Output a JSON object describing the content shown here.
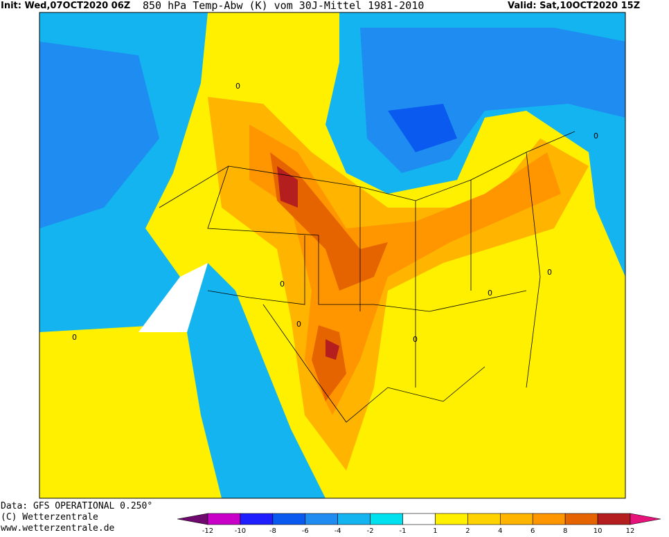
{
  "header": {
    "init": "Init: Wed,07OCT2020 06Z",
    "title": "850 hPa Temp-Abw (K) vom 30J-Mittel 1981-2010",
    "valid": "Valid: Sat,10OCT2020 15Z"
  },
  "footer": {
    "data": "Data: GFS OPERATIONAL 0.250°",
    "copyright": "(C) Wetterzentrale",
    "url": "www.wetterzentrale.de"
  },
  "map": {
    "contour_labels": [
      "0",
      "0",
      "0",
      "0",
      "0",
      "0",
      "0",
      "0"
    ]
  },
  "colorbar": {
    "ticks": [
      -12,
      -10,
      -8,
      -6,
      -4,
      -2,
      -1,
      1,
      2,
      4,
      6,
      8,
      10,
      12
    ],
    "colors": [
      "#6e0a6e",
      "#c800c8",
      "#1e1eff",
      "#0a5af0",
      "#1e8cf0",
      "#14b4f0",
      "#00e1f0",
      "#ffffff",
      "#fff000",
      "#ffd200",
      "#ffb400",
      "#ff9600",
      "#e66400",
      "#b41e1e",
      "#e6147a"
    ]
  }
}
